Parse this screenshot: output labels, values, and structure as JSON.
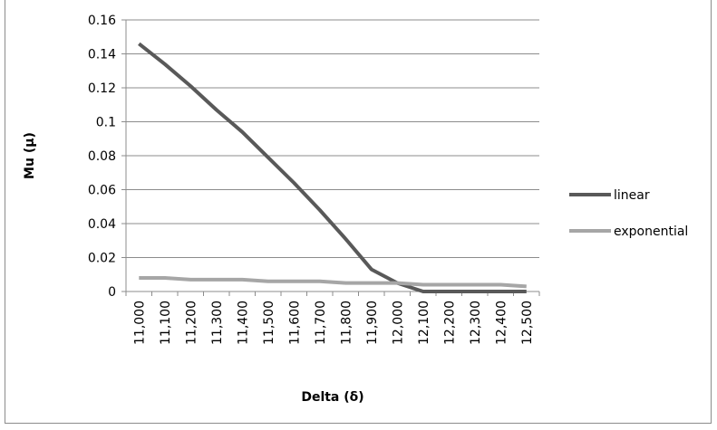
{
  "chart_data": {
    "type": "line",
    "xlabel": "Delta (δ)",
    "ylabel": "Mu (μ)",
    "categories": [
      "11,000",
      "11,100",
      "11,200",
      "11,300",
      "11,400",
      "11,500",
      "11,600",
      "11,700",
      "11,800",
      "11,900",
      "12,000",
      "12,100",
      "12,200",
      "12,300",
      "12,400",
      "12,500"
    ],
    "ylim": [
      0,
      0.16
    ],
    "yticks": [
      0,
      0.02,
      0.04,
      0.06,
      0.08,
      0.1,
      0.12,
      0.14,
      0.16
    ],
    "ytick_labels": [
      "0",
      "0.02",
      "0.04",
      "0.06",
      "0.08",
      "0.1",
      "0.12",
      "0.14",
      "0.16"
    ],
    "grid": true,
    "legend_position": "right",
    "series": [
      {
        "name": "linear",
        "color": "#595959",
        "values": [
          0.146,
          0.134,
          0.121,
          0.107,
          0.094,
          0.079,
          0.064,
          0.048,
          0.031,
          0.013,
          0.005,
          0,
          0,
          0,
          0,
          0
        ]
      },
      {
        "name": "exponential",
        "color": "#a6a6a6",
        "values": [
          0.008,
          0.008,
          0.007,
          0.007,
          0.007,
          0.006,
          0.006,
          0.006,
          0.005,
          0.005,
          0.005,
          0.004,
          0.004,
          0.004,
          0.004,
          0.003
        ]
      }
    ]
  }
}
